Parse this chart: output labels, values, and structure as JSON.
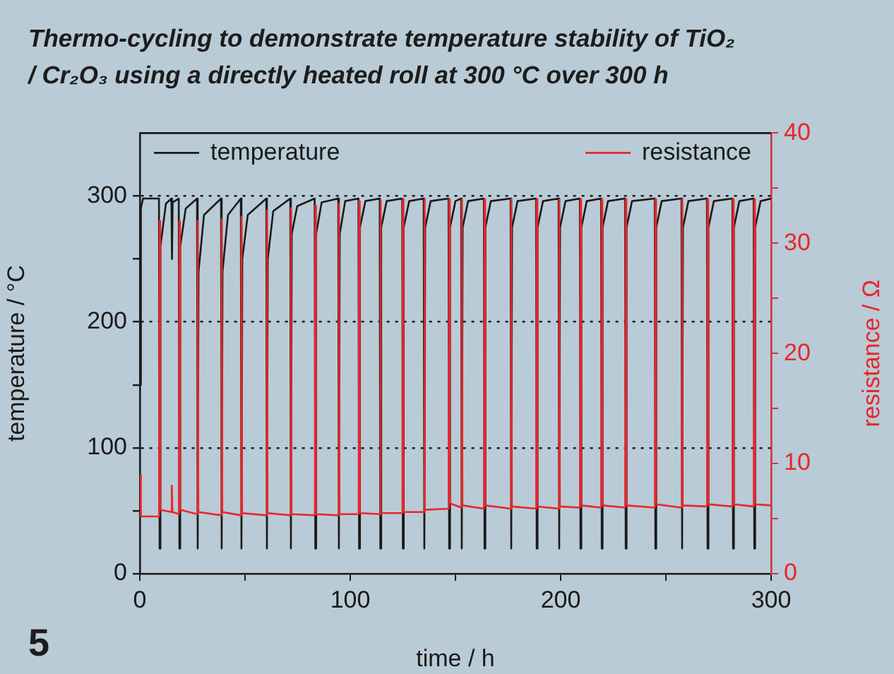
{
  "chart_data": {
    "type": "line",
    "title": "Thermo-cycling to demonstrate temperature stability of TiO₂ / Cr₂O₃ using a directly heated roll at 300 °C over 300 h",
    "xlabel": "time / h",
    "ylabel": "temperature / °C",
    "y2label": "resistance / Ω",
    "annotations": [
      "5"
    ],
    "xlim": [
      0,
      300
    ],
    "xticks": [
      0,
      {
        "value": 50,
        "label": null
      },
      100,
      {
        "value": 150,
        "label": null
      },
      200,
      {
        "value": 250,
        "label": null
      },
      300
    ],
    "ylim": [
      0,
      350
    ],
    "yticks": [
      0,
      {
        "value": 50,
        "label": null
      },
      100,
      {
        "value": 150,
        "label": null
      },
      200,
      {
        "value": 250,
        "label": null
      },
      300
    ],
    "y2lim": [
      0,
      40
    ],
    "y2ticks": [
      0,
      {
        "value": 5,
        "label": null
      },
      10,
      {
        "value": 15,
        "label": null
      },
      20,
      {
        "value": 25,
        "label": null
      },
      30,
      {
        "value": 35,
        "label": null
      },
      40
    ],
    "grid": "y",
    "legend": "top",
    "series": [
      {
        "name": "temperature",
        "color": "#1a1a1a",
        "x": [
          0,
          0.5,
          1.5,
          9.1,
          9.4,
          9.8,
          12.4,
          15.0,
          15.3,
          15.6,
          18.5,
          18.8,
          19.2,
          21.8,
          27.2,
          27.5,
          27.9,
          30.5,
          38.6,
          38.9,
          39.3,
          41.9,
          48.0,
          48.3,
          48.7,
          51.3,
          60.1,
          60.4,
          60.8,
          63.4,
          71.5,
          71.8,
          72.2,
          74.8,
          83.1,
          83.4,
          83.8,
          86.4,
          94.3,
          94.6,
          95.0,
          97.6,
          103.9,
          104.2,
          104.6,
          107.2,
          114.0,
          114.3,
          114.7,
          117.3,
          124.7,
          125.0,
          125.4,
          128.0,
          134.9,
          135.2,
          135.6,
          138.2,
          146.7,
          147.0,
          147.4,
          150.0,
          152.7,
          153.0,
          153.4,
          156.0,
          163.5,
          163.8,
          164.2,
          166.8,
          176.2,
          176.5,
          176.9,
          179.5,
          188.3,
          188.6,
          189.0,
          191.6,
          199.0,
          199.3,
          199.7,
          202.3,
          209.1,
          209.4,
          209.8,
          212.4,
          219.2,
          219.5,
          219.9,
          222.5,
          230.6,
          230.9,
          231.3,
          233.9,
          244.7,
          245.0,
          245.4,
          248.0,
          257.4,
          257.7,
          258.1,
          260.7,
          269.5,
          269.8,
          270.2,
          272.8,
          281.6,
          281.9,
          282.3,
          284.9,
          291.7,
          292.0,
          292.4,
          295.0,
          300
        ],
        "values": [
          150,
          290,
          298,
          298,
          20,
          260,
          294,
          298,
          250,
          295,
          298,
          20,
          260,
          290,
          298,
          20,
          240,
          285,
          298,
          20,
          240,
          285,
          298,
          20,
          250,
          285,
          298,
          20,
          250,
          288,
          298,
          20,
          270,
          292,
          298,
          20,
          270,
          295,
          298,
          20,
          270,
          296,
          298,
          20,
          275,
          296,
          298,
          20,
          275,
          296,
          298,
          20,
          275,
          296,
          298,
          20,
          275,
          296,
          298,
          20,
          275,
          296,
          298,
          20,
          275,
          296,
          298,
          20,
          275,
          296,
          298,
          20,
          275,
          296,
          298,
          20,
          275,
          296,
          298,
          20,
          275,
          296,
          298,
          20,
          275,
          296,
          298,
          20,
          275,
          296,
          298,
          20,
          275,
          296,
          298,
          20,
          275,
          296,
          298,
          20,
          275,
          296,
          298,
          20,
          275,
          296,
          298,
          20,
          275,
          296,
          298,
          20,
          275,
          296,
          298
        ]
      },
      {
        "name": "resistance",
        "color": "#e8262a",
        "axis": "y2",
        "x": [
          0,
          0.5,
          9.2,
          9.4,
          9.7,
          15.0,
          15.2,
          15.5,
          18.6,
          18.8,
          19.1,
          27.3,
          27.5,
          27.8,
          38.7,
          38.9,
          39.2,
          48.1,
          48.3,
          48.6,
          60.2,
          60.4,
          60.7,
          71.6,
          71.8,
          72.1,
          83.2,
          83.4,
          83.7,
          94.4,
          94.6,
          94.9,
          104.0,
          104.2,
          104.5,
          114.1,
          114.3,
          114.6,
          124.8,
          125.0,
          125.3,
          135.0,
          135.2,
          135.5,
          146.8,
          147.0,
          147.3,
          152.8,
          153.0,
          153.3,
          163.6,
          163.8,
          164.1,
          176.3,
          176.5,
          176.8,
          188.4,
          188.6,
          188.9,
          199.1,
          199.3,
          199.6,
          209.2,
          209.4,
          209.7,
          219.3,
          219.5,
          219.8,
          230.7,
          230.9,
          231.2,
          244.8,
          245.0,
          245.3,
          257.5,
          257.7,
          258.0,
          269.6,
          269.8,
          270.1,
          281.7,
          281.9,
          282.2,
          291.8,
          292.0,
          292.3,
          300
        ],
        "values": [
          9,
          5.2,
          5.2,
          32,
          5.8,
          5.6,
          8,
          5.6,
          5.4,
          32,
          5.8,
          5.4,
          32,
          5.6,
          5.3,
          32.2,
          5.6,
          5.3,
          32.4,
          5.5,
          5.3,
          33,
          5.5,
          5.3,
          33.2,
          5.4,
          5.3,
          33.4,
          5.4,
          5.3,
          33.6,
          5.4,
          5.4,
          33.8,
          5.5,
          5.4,
          33.9,
          5.5,
          5.5,
          34,
          5.6,
          5.6,
          34,
          5.8,
          5.9,
          34,
          6.4,
          6.0,
          34,
          6.2,
          5.9,
          34,
          6.2,
          5.9,
          34,
          6.1,
          5.9,
          34,
          6.1,
          5.9,
          34,
          6.1,
          6.0,
          34,
          6.2,
          6.0,
          34,
          6.2,
          6.0,
          34,
          6.2,
          6.0,
          34,
          6.3,
          6.0,
          34,
          6.2,
          6.1,
          34,
          6.3,
          6.1,
          34,
          6.3,
          6.1,
          34,
          6.3,
          6.2
        ]
      }
    ]
  }
}
